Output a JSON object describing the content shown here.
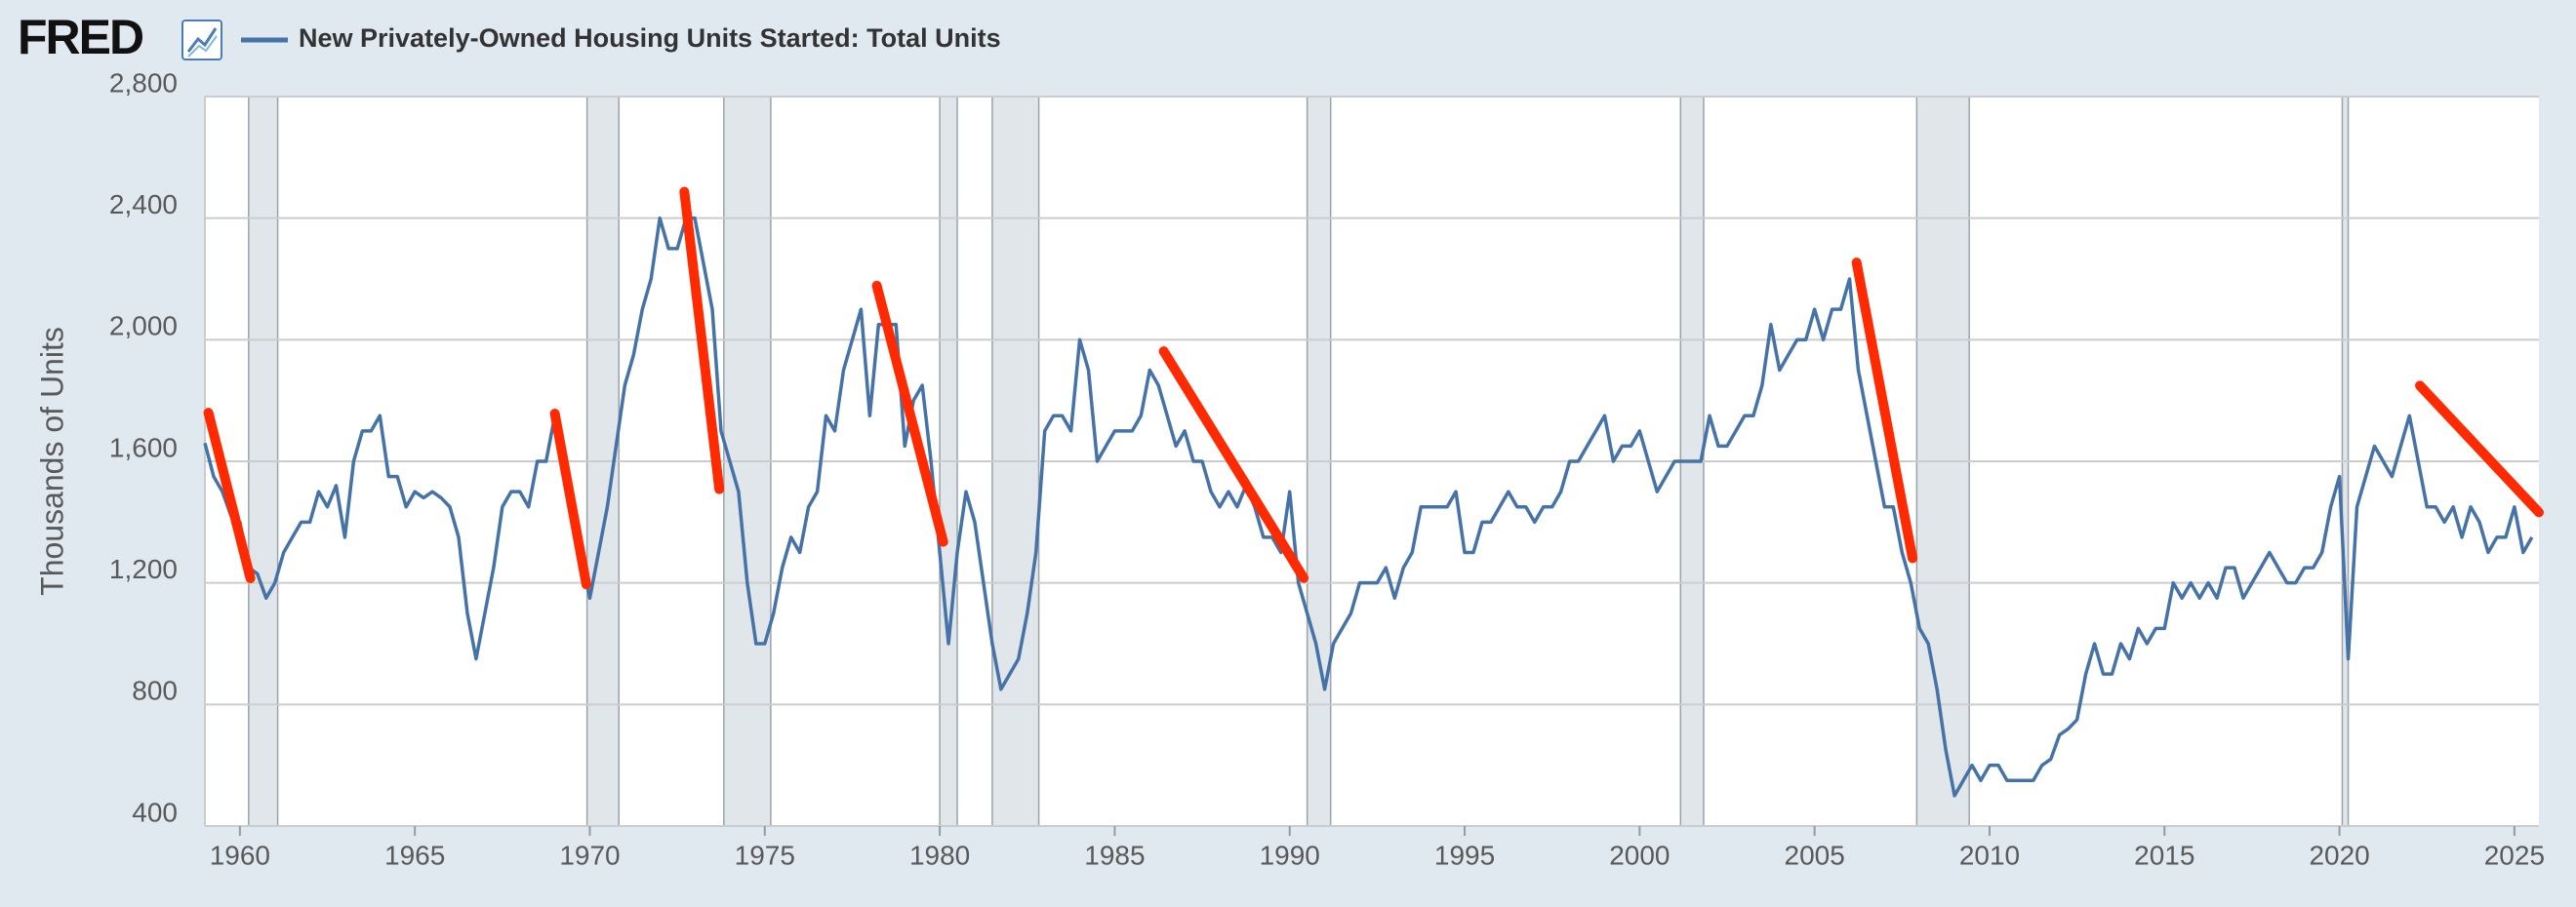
{
  "logo": "FRED",
  "chart_data": {
    "type": "line",
    "y_label": "Thousands of Units",
    "xlim": [
      1959,
      2025.7
    ],
    "ylim": [
      400,
      2800
    ],
    "xticks": [
      1960,
      1965,
      1970,
      1975,
      1980,
      1985,
      1990,
      1995,
      2000,
      2005,
      2010,
      2015,
      2020,
      2025
    ],
    "yticks": [
      {
        "value": 2800,
        "label": "2,800"
      },
      {
        "value": 2400,
        "label": "2,400"
      },
      {
        "value": 2000,
        "label": "2,000"
      },
      {
        "value": 1600,
        "label": "1,600"
      },
      {
        "value": 1200,
        "label": "1,200"
      },
      800,
      400
    ],
    "grid": true,
    "recession_color": "#e1e6ea",
    "recessions": [
      [
        1960.25,
        1961.08
      ],
      [
        1969.92,
        1970.83
      ],
      [
        1973.83,
        1975.17
      ],
      [
        1980.0,
        1980.5
      ],
      [
        1981.5,
        1982.83
      ],
      [
        1990.5,
        1991.17
      ],
      [
        2001.17,
        2001.83
      ],
      [
        2007.92,
        2009.42
      ],
      [
        2020.08,
        2020.25
      ]
    ],
    "trend_color": "#ff2a00",
    "trend_lines": [
      {
        "x": [
          1959.1,
          1960.3
        ],
        "y": [
          1760,
          1215
        ]
      },
      {
        "x": [
          1969.0,
          1969.9
        ],
        "y": [
          1757,
          1195
        ]
      },
      {
        "x": [
          1972.7,
          1973.7
        ],
        "y": [
          2487,
          1508
        ]
      },
      {
        "x": [
          1978.2,
          1980.1
        ],
        "y": [
          2178,
          1335
        ]
      },
      {
        "x": [
          1986.4,
          1990.4
        ],
        "y": [
          1962,
          1216
        ]
      },
      {
        "x": [
          2006.2,
          2007.8
        ],
        "y": [
          2254,
          1281
        ]
      },
      {
        "x": [
          2022.3,
          2025.7
        ],
        "y": [
          1849,
          1432
        ]
      }
    ],
    "x": [
      1959,
      1959.25,
      1959.5,
      1959.75,
      1960,
      1960.25,
      1960.5,
      1960.75,
      1961,
      1961.25,
      1961.5,
      1961.75,
      1962,
      1962.25,
      1962.5,
      1962.75,
      1963,
      1963.25,
      1963.5,
      1963.75,
      1964,
      1964.25,
      1964.5,
      1964.75,
      1965,
      1965.25,
      1965.5,
      1965.75,
      1966,
      1966.25,
      1966.5,
      1966.75,
      1967,
      1967.25,
      1967.5,
      1967.75,
      1968,
      1968.25,
      1968.5,
      1968.75,
      1969,
      1969.25,
      1969.5,
      1969.75,
      1970,
      1970.25,
      1970.5,
      1970.75,
      1971,
      1971.25,
      1971.5,
      1971.75,
      1972,
      1972.25,
      1972.5,
      1972.75,
      1973,
      1973.25,
      1973.5,
      1973.75,
      1974,
      1974.25,
      1974.5,
      1974.75,
      1975,
      1975.25,
      1975.5,
      1975.75,
      1976,
      1976.25,
      1976.5,
      1976.75,
      1977,
      1977.25,
      1977.5,
      1977.75,
      1978,
      1978.25,
      1978.5,
      1978.75,
      1979,
      1979.25,
      1979.5,
      1979.75,
      1980,
      1980.25,
      1980.5,
      1980.75,
      1981,
      1981.25,
      1981.5,
      1981.75,
      1982,
      1982.25,
      1982.5,
      1982.75,
      1983,
      1983.25,
      1983.5,
      1983.75,
      1984,
      1984.25,
      1984.5,
      1984.75,
      1985,
      1985.25,
      1985.5,
      1985.75,
      1986,
      1986.25,
      1986.5,
      1986.75,
      1987,
      1987.25,
      1987.5,
      1987.75,
      1988,
      1988.25,
      1988.5,
      1988.75,
      1989,
      1989.25,
      1989.5,
      1989.75,
      1990,
      1990.25,
      1990.5,
      1990.75,
      1991,
      1991.25,
      1991.5,
      1991.75,
      1992,
      1992.25,
      1992.5,
      1992.75,
      1993,
      1993.25,
      1993.5,
      1993.75,
      1994,
      1994.25,
      1994.5,
      1994.75,
      1995,
      1995.25,
      1995.5,
      1995.75,
      1996,
      1996.25,
      1996.5,
      1996.75,
      1997,
      1997.25,
      1997.5,
      1997.75,
      1998,
      1998.25,
      1998.5,
      1998.75,
      1999,
      1999.25,
      1999.5,
      1999.75,
      2000,
      2000.25,
      2000.5,
      2000.75,
      2001,
      2001.25,
      2001.5,
      2001.75,
      2002,
      2002.25,
      2002.5,
      2002.75,
      2003,
      2003.25,
      2003.5,
      2003.75,
      2004,
      2004.25,
      2004.5,
      2004.75,
      2005,
      2005.25,
      2005.5,
      2005.75,
      2006,
      2006.25,
      2006.5,
      2006.75,
      2007,
      2007.25,
      2007.5,
      2007.75,
      2008,
      2008.25,
      2008.5,
      2008.75,
      2009,
      2009.25,
      2009.5,
      2009.75,
      2010,
      2010.25,
      2010.5,
      2010.75,
      2011,
      2011.25,
      2011.5,
      2011.75,
      2012,
      2012.25,
      2012.5,
      2012.75,
      2013,
      2013.25,
      2013.5,
      2013.75,
      2014,
      2014.25,
      2014.5,
      2014.75,
      2015,
      2015.25,
      2015.5,
      2015.75,
      2016,
      2016.25,
      2016.5,
      2016.75,
      2017,
      2017.25,
      2017.5,
      2017.75,
      2018,
      2018.25,
      2018.5,
      2018.75,
      2019,
      2019.25,
      2019.5,
      2019.75,
      2020,
      2020.25,
      2020.5,
      2020.75,
      2021,
      2021.25,
      2021.5,
      2021.75,
      2022,
      2022.25,
      2022.5,
      2022.75,
      2023,
      2023.25,
      2023.5,
      2023.75,
      2024,
      2024.25,
      2024.5,
      2024.75,
      2025,
      2025.25,
      2025.5
    ],
    "series": [
      {
        "name": "New Privately-Owned Housing Units Started: Total Units",
        "color": "#4572a7",
        "values": [
          1660,
          1550,
          1500,
          1420,
          1400,
          1250,
          1230,
          1150,
          1200,
          1300,
          1350,
          1400,
          1400,
          1500,
          1450,
          1520,
          1350,
          1600,
          1700,
          1700,
          1750,
          1550,
          1550,
          1450,
          1500,
          1480,
          1500,
          1480,
          1450,
          1350,
          1100,
          950,
          1100,
          1250,
          1450,
          1500,
          1500,
          1450,
          1600,
          1600,
          1750,
          1600,
          1450,
          1300,
          1150,
          1300,
          1450,
          1650,
          1850,
          1950,
          2100,
          2200,
          2400,
          2300,
          2300,
          2400,
          2400,
          2250,
          2100,
          1700,
          1600,
          1500,
          1200,
          1000,
          1000,
          1100,
          1250,
          1350,
          1300,
          1450,
          1500,
          1750,
          1700,
          1900,
          2000,
          2100,
          1750,
          2050,
          2050,
          2050,
          1650,
          1800,
          1850,
          1600,
          1300,
          1000,
          1300,
          1500,
          1400,
          1200,
          1000,
          850,
          900,
          950,
          1100,
          1300,
          1700,
          1750,
          1750,
          1700,
          2000,
          1900,
          1600,
          1650,
          1700,
          1700,
          1700,
          1750,
          1900,
          1850,
          1750,
          1650,
          1700,
          1600,
          1600,
          1500,
          1450,
          1500,
          1450,
          1520,
          1450,
          1350,
          1350,
          1300,
          1500,
          1200,
          1100,
          1000,
          850,
          1000,
          1050,
          1100,
          1200,
          1200,
          1200,
          1250,
          1150,
          1250,
          1300,
          1450,
          1450,
          1450,
          1450,
          1500,
          1300,
          1300,
          1400,
          1400,
          1450,
          1500,
          1450,
          1450,
          1400,
          1450,
          1450,
          1500,
          1600,
          1600,
          1650,
          1700,
          1750,
          1600,
          1650,
          1650,
          1700,
          1600,
          1500,
          1550,
          1600,
          1600,
          1600,
          1600,
          1750,
          1650,
          1650,
          1700,
          1750,
          1750,
          1850,
          2050,
          1900,
          1950,
          2000,
          2000,
          2100,
          2000,
          2100,
          2100,
          2200,
          1900,
          1750,
          1600,
          1450,
          1450,
          1300,
          1200,
          1050,
          1000,
          850,
          650,
          500,
          550,
          600,
          550,
          600,
          600,
          550,
          550,
          550,
          550,
          600,
          620,
          700,
          720,
          750,
          900,
          1000,
          900,
          900,
          1000,
          950,
          1050,
          1000,
          1050,
          1050,
          1200,
          1150,
          1200,
          1150,
          1200,
          1150,
          1250,
          1250,
          1150,
          1200,
          1250,
          1300,
          1250,
          1200,
          1200,
          1250,
          1250,
          1300,
          1450,
          1550,
          950,
          1450,
          1550,
          1650,
          1600,
          1550,
          1650,
          1750,
          1600,
          1450,
          1450,
          1400,
          1450,
          1350,
          1450,
          1400,
          1300,
          1350,
          1350,
          1450,
          1300,
          1350
        ]
      }
    ]
  }
}
